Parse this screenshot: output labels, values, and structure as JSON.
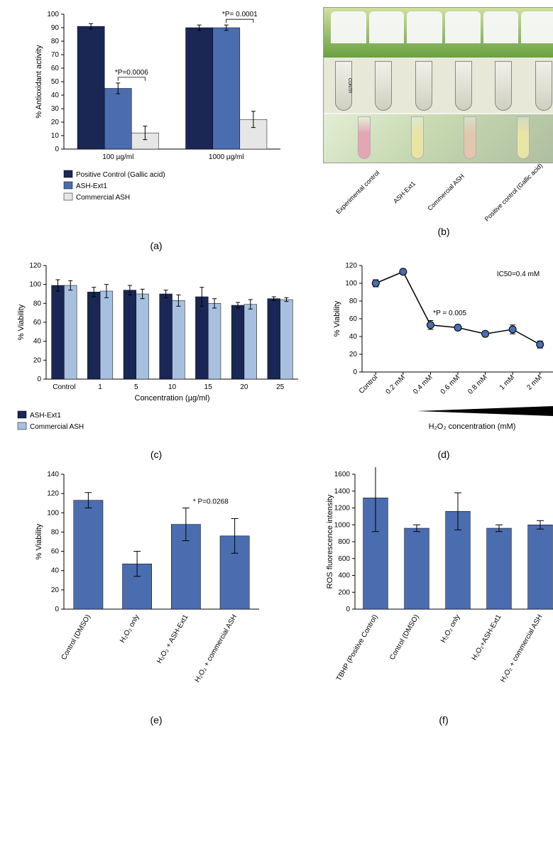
{
  "panel_a": {
    "type": "bar",
    "ylabel": "% Antioxidant activity",
    "ylim": [
      0,
      100
    ],
    "ytick_step": 10,
    "groups": [
      "100 µg/ml",
      "1000 µg/ml"
    ],
    "series": [
      {
        "name": "Positive Control (Gallic acid)",
        "color": "#1a2654",
        "values": [
          91,
          90
        ],
        "errors": [
          2,
          2
        ]
      },
      {
        "name": "ASH-Ext1",
        "color": "#4a6db0",
        "values": [
          45,
          90
        ],
        "errors": [
          4,
          2
        ]
      },
      {
        "name": "Commercial ASH",
        "color": "#e6e6e6",
        "values": [
          12,
          22
        ],
        "errors": [
          5,
          6
        ]
      }
    ],
    "annotations": [
      {
        "text": "*P=0.0006",
        "x": 0,
        "bracket": [
          1,
          2
        ]
      },
      {
        "text": "*P= 0.0001",
        "x": 1,
        "bracket": [
          1,
          2
        ]
      }
    ],
    "bar_width": 0.25,
    "label_fontsize": 11,
    "tick_fontsize": 10
  },
  "panel_b": {
    "type": "photo",
    "labels": [
      "Experimental control",
      "ASH-Ext1",
      "Commercial ASH",
      "Positive control (Gallic acid)"
    ],
    "tube_colors": [
      "#c94a6a",
      "#d4c849",
      "#c88a5a",
      "#d4c849"
    ]
  },
  "panel_c": {
    "type": "bar",
    "ylabel": "% Viability",
    "xlabel": "Concentration (µg/ml)",
    "ylim": [
      0,
      120
    ],
    "ytick_step": 20,
    "groups": [
      "Control",
      "1",
      "5",
      "10",
      "15",
      "20",
      "25"
    ],
    "series": [
      {
        "name": "ASH-Ext1",
        "color": "#1a2654",
        "values": [
          99,
          92,
          94,
          90,
          87,
          78,
          85
        ],
        "errors": [
          6,
          5,
          5,
          4,
          10,
          3,
          2
        ]
      },
      {
        "name": "Commercial ASH",
        "color": "#a8c0e0",
        "values": [
          99,
          93,
          90,
          83,
          80,
          79,
          84
        ],
        "errors": [
          5,
          7,
          5,
          6,
          5,
          5,
          2
        ]
      }
    ],
    "bar_width": 0.35,
    "label_fontsize": 11,
    "tick_fontsize": 10
  },
  "panel_d": {
    "type": "line",
    "ylabel": "% Viability",
    "xlabel": "H₂O₂ concentration (mM)",
    "ylim": [
      0,
      120
    ],
    "ytick_step": 20,
    "categories": [
      "Control",
      "0.2 mM",
      "0.4 mM",
      "0.6 mM",
      "0.8 mM",
      "1 mM",
      "2 mM"
    ],
    "values": [
      100,
      113,
      53,
      50,
      43,
      48,
      31
    ],
    "errors": [
      4,
      3,
      5,
      3,
      3,
      5,
      4
    ],
    "marker_color": "#4a6db0",
    "line_color": "#000000",
    "marker_size": 5,
    "annotations": [
      {
        "text": "IC50=0.4 mM",
        "pos": "top-right"
      },
      {
        "text": "*P = 0.005",
        "pos": "mid"
      }
    ],
    "label_fontsize": 11,
    "tick_fontsize": 10
  },
  "panel_e": {
    "type": "bar",
    "ylabel": "% Viability",
    "ylim": [
      0,
      140
    ],
    "ytick_step": 20,
    "categories": [
      "Control (DMSO)",
      "H₂O₂ only",
      "H₂O₂ + ASH-Ext1",
      "H₂O₂ + commercial ASH"
    ],
    "values": [
      113,
      47,
      88,
      76
    ],
    "errors": [
      8,
      13,
      17,
      18
    ],
    "bar_color": "#4a6db0",
    "annotation": {
      "text": "* P=0.0268",
      "bar_index": 2
    },
    "bar_width": 0.6,
    "label_fontsize": 11,
    "tick_fontsize": 10
  },
  "panel_f": {
    "type": "bar",
    "ylabel": "ROS fluorescence intensity",
    "ylim": [
      0,
      1600
    ],
    "ytick_step": 200,
    "categories": [
      "TBHP (Positive Control)",
      "Control (DMSO)",
      "H₂O₂ only",
      "H₂O₂+ASH-Ext1",
      "H₂O₂ + commercial ASH"
    ],
    "values": [
      1320,
      960,
      1160,
      960,
      1000
    ],
    "errors": [
      400,
      40,
      220,
      40,
      50
    ],
    "bar_color": "#4a6db0",
    "bar_width": 0.6,
    "label_fontsize": 11,
    "tick_fontsize": 10
  },
  "panel_labels": {
    "a": "(a)",
    "b": "(b)",
    "c": "(c)",
    "d": "(d)",
    "e": "(e)",
    "f": "(f)"
  }
}
